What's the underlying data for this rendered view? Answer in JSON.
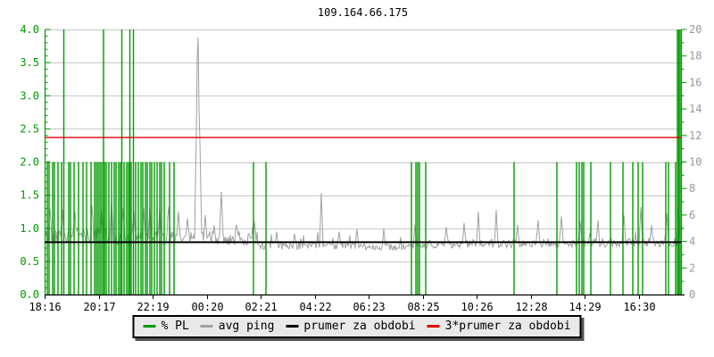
{
  "chart_data": {
    "type": "bar+line ping monitor graph",
    "title": "109.164.66.175",
    "x_axis": {
      "labels": [
        "18:16",
        "20:17",
        "22:19",
        "00:20",
        "02:21",
        "04:22",
        "06:23",
        "08:25",
        "10:26",
        "12:28",
        "14:29",
        "16:30"
      ],
      "minutes_per_pixel": 2,
      "window_minutes": 1426,
      "tick_color": "#000000"
    },
    "left_axis": {
      "labels": [
        "4.0",
        "3.5",
        "3.0",
        "2.5",
        "2.0",
        "1.5",
        "1.0",
        "0.5",
        "0.0"
      ],
      "range": [
        0,
        4
      ],
      "color": "#009900"
    },
    "right_axis": {
      "labels": [
        "20",
        "18",
        "16",
        "14",
        "12",
        "10",
        "8",
        "6",
        "4",
        "2",
        "0"
      ],
      "range": [
        0,
        20
      ],
      "color": "#999999"
    },
    "colors": {
      "grid": "#c8c8c8",
      "axis": "#009900",
      "background": "#ffffff",
      "text": "#000000"
    },
    "series": {
      "pl": {
        "name": "% PL",
        "type": "bar",
        "axis": "right",
        "color": "#009900",
        "unit": "%",
        "points": [
          [
            6,
            10
          ],
          [
            10,
            10
          ],
          [
            18,
            10
          ],
          [
            22,
            10
          ],
          [
            30,
            10
          ],
          [
            38,
            10
          ],
          [
            43,
            20
          ],
          [
            54,
            10
          ],
          [
            58,
            10
          ],
          [
            66,
            10
          ],
          [
            76,
            10
          ],
          [
            86,
            10
          ],
          [
            94,
            10
          ],
          [
            104,
            10
          ],
          [
            112,
            10
          ],
          [
            116,
            10
          ],
          [
            120,
            10
          ],
          [
            124,
            10
          ],
          [
            128,
            10
          ],
          [
            132,
            20
          ],
          [
            134,
            10
          ],
          [
            138,
            10
          ],
          [
            144,
            10
          ],
          [
            150,
            10
          ],
          [
            156,
            10
          ],
          [
            160,
            10
          ],
          [
            166,
            10
          ],
          [
            170,
            10
          ],
          [
            173,
            20
          ],
          [
            178,
            10
          ],
          [
            184,
            10
          ],
          [
            188,
            10
          ],
          [
            191,
            20
          ],
          [
            194,
            10
          ],
          [
            199,
            20
          ],
          [
            204,
            10
          ],
          [
            210,
            10
          ],
          [
            216,
            10
          ],
          [
            220,
            10
          ],
          [
            226,
            10
          ],
          [
            230,
            10
          ],
          [
            236,
            10
          ],
          [
            240,
            10
          ],
          [
            246,
            10
          ],
          [
            252,
            10
          ],
          [
            258,
            10
          ],
          [
            262,
            10
          ],
          [
            268,
            10
          ],
          [
            280,
            10
          ],
          [
            290,
            10
          ],
          [
            468,
            10
          ],
          [
            496,
            10
          ],
          [
            822,
            10
          ],
          [
            832,
            10
          ],
          [
            836,
            10
          ],
          [
            840,
            10
          ],
          [
            854,
            10
          ],
          [
            1052,
            10
          ],
          [
            1148,
            10
          ],
          [
            1192,
            10
          ],
          [
            1198,
            10
          ],
          [
            1204,
            10
          ],
          [
            1208,
            10
          ],
          [
            1224,
            10
          ],
          [
            1268,
            10
          ],
          [
            1296,
            10
          ],
          [
            1318,
            10
          ],
          [
            1330,
            10
          ],
          [
            1340,
            10
          ],
          [
            1392,
            10
          ],
          [
            1398,
            10
          ],
          [
            1414,
            10
          ],
          [
            1418,
            20
          ],
          [
            1421,
            20
          ],
          [
            1424,
            20
          ]
        ]
      },
      "avg_ping": {
        "name": "avg ping",
        "type": "noisy-line",
        "axis": "left",
        "color": "#a0a0a0",
        "noise_seed": 42,
        "baseline_segments": [
          [
            0,
            140,
            0.88,
            0.12
          ],
          [
            140,
            480,
            0.85,
            0.11
          ],
          [
            480,
            700,
            0.74,
            0.06
          ],
          [
            700,
            860,
            0.72,
            0.05
          ],
          [
            860,
            1100,
            0.76,
            0.06
          ],
          [
            1100,
            1430,
            0.78,
            0.07
          ]
        ],
        "spikes": [
          [
            12,
            1.3,
            1
          ],
          [
            40,
            1.28,
            1
          ],
          [
            68,
            1.25,
            1
          ],
          [
            105,
            1.35,
            1
          ],
          [
            128,
            1.3,
            1
          ],
          [
            150,
            1.42,
            1
          ],
          [
            176,
            1.3,
            1
          ],
          [
            200,
            1.28,
            1
          ],
          [
            222,
            1.3,
            1
          ],
          [
            235,
            1.35,
            1
          ],
          [
            258,
            1.3,
            1
          ],
          [
            278,
            1.32,
            1
          ],
          [
            300,
            1.25,
            1
          ],
          [
            320,
            1.15,
            1
          ],
          [
            341,
            3.3,
            2
          ],
          [
            344,
            3.88,
            1
          ],
          [
            347,
            2.3,
            1
          ],
          [
            360,
            1.2,
            1
          ],
          [
            396,
            1.55,
            1
          ],
          [
            430,
            1.05,
            1
          ],
          [
            470,
            1.1,
            1
          ],
          [
            520,
            0.95,
            1
          ],
          [
            560,
            0.92,
            1
          ],
          [
            620,
            1.53,
            1
          ],
          [
            660,
            0.95,
            1
          ],
          [
            700,
            0.98,
            1
          ],
          [
            760,
            1.0,
            1
          ],
          [
            830,
            1.05,
            1
          ],
          [
            900,
            1.02,
            1
          ],
          [
            940,
            1.08,
            1
          ],
          [
            972,
            1.25,
            1
          ],
          [
            1012,
            1.28,
            1
          ],
          [
            1060,
            1.05,
            1
          ],
          [
            1105,
            1.12,
            1
          ],
          [
            1158,
            1.18,
            1
          ],
          [
            1200,
            1.1,
            1
          ],
          [
            1240,
            1.12,
            1
          ],
          [
            1298,
            1.2,
            1
          ],
          [
            1336,
            1.32,
            1
          ],
          [
            1360,
            1.05,
            1
          ],
          [
            1394,
            1.22,
            1
          ],
          [
            1420,
            1.3,
            1
          ]
        ]
      },
      "period_avg": {
        "name": "prumer za obdobi",
        "type": "hline",
        "axis": "left",
        "color": "#000000",
        "value": 0.79
      },
      "period_avg3": {
        "name": "3*prumer za obdobi",
        "type": "hline",
        "axis": "left",
        "color": "#dd0000",
        "value": 2.37
      }
    },
    "legend": [
      {
        "label": "% PL",
        "color": "#009900"
      },
      {
        "label": "avg ping",
        "color": "#a0a0a0"
      },
      {
        "label": "prumer za obdobi",
        "color": "#000000"
      },
      {
        "label": "3*prumer za obdobi",
        "color": "#dd0000"
      }
    ]
  }
}
